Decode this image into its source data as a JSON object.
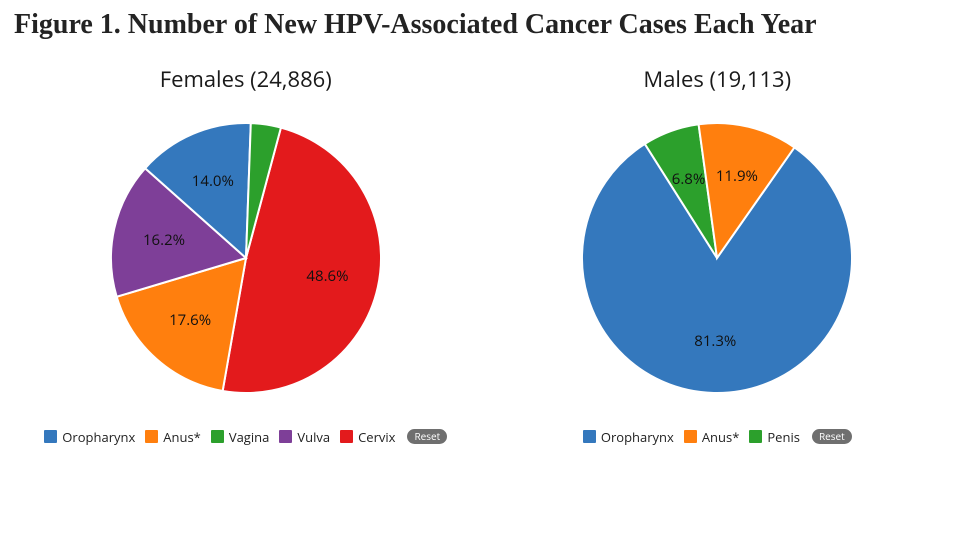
{
  "title": "Figure 1. Number of New HPV-Associated Cancer Cases Each Year",
  "title_font_family": "serif",
  "title_fontsize": 28,
  "title_weight": 700,
  "background_color": "#ffffff",
  "charts": {
    "females": {
      "type": "pie",
      "subtitle": "Females (24,886)",
      "subtitle_fontsize": 22,
      "radius": 135,
      "start_angle_deg": -75,
      "direction": "clockwise",
      "label_fontsize": 15,
      "label_color": "#111111",
      "slices": [
        {
          "name": "Cervix",
          "value": 48.6,
          "color": "#e31a1c",
          "label": "48.6%",
          "label_r": 0.62,
          "show_label": true
        },
        {
          "name": "Anus*",
          "value": 17.6,
          "color": "#ff7f0e",
          "label": "17.6%",
          "label_r": 0.62,
          "show_label": true
        },
        {
          "name": "Vulva",
          "value": 16.2,
          "color": "#7e3f98",
          "label": "16.2%",
          "label_r": 0.62,
          "show_label": true
        },
        {
          "name": "Oropharynx",
          "value": 14.0,
          "color": "#3478bd",
          "label": "14.0%",
          "label_r": 0.62,
          "show_label": true
        },
        {
          "name": "Vagina",
          "value": 3.6,
          "color": "#2ca02c",
          "label": "",
          "label_r": 0.62,
          "show_label": false
        }
      ],
      "legend": [
        {
          "label": "Oropharynx",
          "color": "#3478bd"
        },
        {
          "label": "Anus*",
          "color": "#ff7f0e"
        },
        {
          "label": "Vagina",
          "color": "#2ca02c"
        },
        {
          "label": "Vulva",
          "color": "#7e3f98"
        },
        {
          "label": "Cervix",
          "color": "#e31a1c"
        }
      ],
      "reset_label": "Reset"
    },
    "males": {
      "type": "pie",
      "subtitle": "Males (19,113)",
      "subtitle_fontsize": 22,
      "radius": 135,
      "start_angle_deg": -55,
      "direction": "clockwise",
      "label_fontsize": 15,
      "label_color": "#111111",
      "slices": [
        {
          "name": "Oropharynx",
          "value": 81.3,
          "color": "#3478bd",
          "label": "81.3%",
          "label_r": 0.62,
          "show_label": true
        },
        {
          "name": "Penis",
          "value": 6.8,
          "color": "#2ca02c",
          "label": "6.8%",
          "label_r": 0.62,
          "show_label": true
        },
        {
          "name": "Anus*",
          "value": 11.9,
          "color": "#ff7f0e",
          "label": "11.9%",
          "label_r": 0.62,
          "show_label": true
        }
      ],
      "legend": [
        {
          "label": "Oropharynx",
          "color": "#3478bd"
        },
        {
          "label": "Anus*",
          "color": "#ff7f0e"
        },
        {
          "label": "Penis",
          "color": "#2ca02c"
        }
      ],
      "reset_label": "Reset"
    }
  }
}
